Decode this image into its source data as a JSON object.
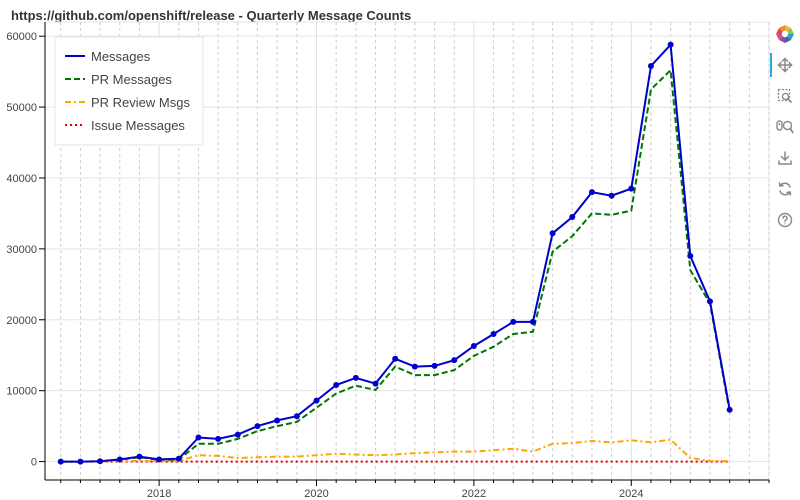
{
  "chart_data": {
    "type": "line",
    "title": "https://github.com/openshift/release - Quarterly Message Counts",
    "xlabel": "",
    "ylabel": "",
    "xlim": [
      2016.55,
      2025.75
    ],
    "ylim": [
      -2600,
      62000
    ],
    "grid": true,
    "legend_position": "top-left",
    "x_ticks": [
      2018,
      2020,
      2022,
      2024
    ],
    "x_tick_labels": [
      "2018",
      "2020",
      "2022",
      "2024"
    ],
    "y_ticks": [
      0,
      10000,
      20000,
      30000,
      40000,
      50000,
      60000
    ],
    "y_tick_labels": [
      "0",
      "10000",
      "20000",
      "30000",
      "40000",
      "50000",
      "60000"
    ],
    "x": [
      2016.75,
      2017.0,
      2017.25,
      2017.5,
      2017.75,
      2018.0,
      2018.25,
      2018.5,
      2018.75,
      2019.0,
      2019.25,
      2019.5,
      2019.75,
      2020.0,
      2020.25,
      2020.5,
      2020.75,
      2021.0,
      2021.25,
      2021.5,
      2021.75,
      2022.0,
      2022.25,
      2022.5,
      2022.75,
      2023.0,
      2023.25,
      2023.5,
      2023.75,
      2024.0,
      2024.25,
      2024.5,
      2024.75,
      2025.0,
      2025.25
    ],
    "series": [
      {
        "name": "Messages",
        "color": "#0000cc",
        "dash": "solid",
        "markers": true,
        "values": [
          0,
          0,
          50,
          300,
          700,
          300,
          400,
          3400,
          3200,
          3800,
          5000,
          5800,
          6400,
          8600,
          10800,
          11800,
          11000,
          14500,
          13400,
          13500,
          14300,
          16300,
          18000,
          19700,
          19700,
          32200,
          34500,
          38000,
          37500,
          38500,
          55800,
          58800,
          29000,
          22600,
          7300
        ]
      },
      {
        "name": "PR Messages",
        "color": "#007700",
        "dash": "dashed",
        "markers": false,
        "values": [
          0,
          0,
          50,
          250,
          600,
          250,
          300,
          2500,
          2500,
          3200,
          4300,
          5000,
          5600,
          7600,
          9600,
          10700,
          10100,
          13400,
          12200,
          12200,
          12900,
          14900,
          16200,
          18000,
          18300,
          29600,
          31800,
          35000,
          34800,
          35400,
          52500,
          55200,
          27000,
          22300,
          7000
        ]
      },
      {
        "name": "PR Review Msgs",
        "color": "#ffa500",
        "dash": "dashdot",
        "markers": false,
        "values": [
          0,
          0,
          0,
          50,
          100,
          50,
          100,
          900,
          800,
          500,
          600,
          700,
          700,
          900,
          1100,
          1000,
          900,
          1000,
          1200,
          1300,
          1400,
          1400,
          1600,
          1800,
          1400,
          2500,
          2600,
          2900,
          2700,
          3000,
          2700,
          3100,
          500,
          100,
          50
        ]
      },
      {
        "name": "Issue Messages",
        "color": "#dd0000",
        "dash": "dotted",
        "markers": false,
        "values": [
          0,
          0,
          0,
          0,
          0,
          0,
          0,
          0,
          0,
          0,
          0,
          0,
          0,
          0,
          0,
          0,
          0,
          0,
          0,
          0,
          0,
          0,
          0,
          0,
          0,
          0,
          0,
          0,
          0,
          0,
          0,
          0,
          0,
          0,
          0
        ]
      }
    ]
  },
  "toolbar": {
    "icons": [
      "bokeh-logo-icon",
      "pan-icon",
      "box-zoom-icon",
      "wheel-zoom-icon",
      "save-icon",
      "reset-icon",
      "help-icon"
    ],
    "active_color": "#26aae1"
  }
}
